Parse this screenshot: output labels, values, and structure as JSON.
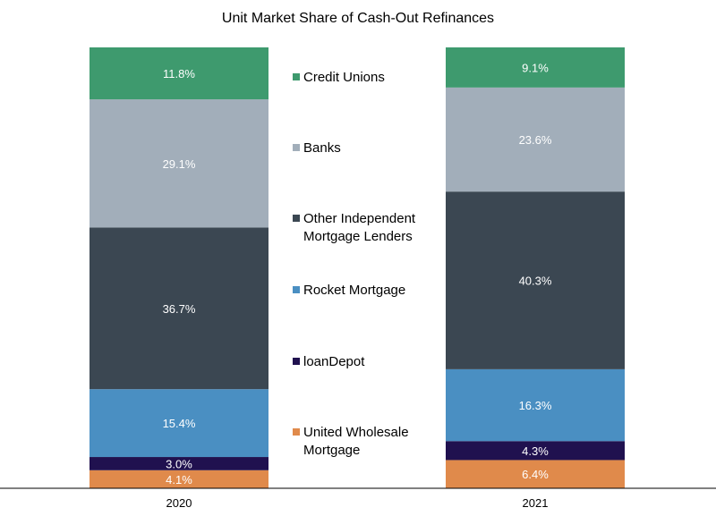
{
  "chart_data": {
    "type": "bar",
    "stacked": true,
    "title": "Unit Market Share of Cash-Out Refinances",
    "xlabel": "",
    "ylabel": "",
    "ylim": [
      0,
      100
    ],
    "grid": false,
    "legend_position": "center",
    "categories": [
      "2020",
      "2021"
    ],
    "series": [
      {
        "name": "United Wholesale Mortgage",
        "legend_lines": [
          "United Wholesale",
          "Mortgage"
        ],
        "color": "#E08A4B",
        "values": [
          4.1,
          6.4
        ],
        "labels": [
          "4.1%",
          "6.4%"
        ]
      },
      {
        "name": "loanDepot",
        "legend_lines": [
          "loanDepot"
        ],
        "color": "#20114F",
        "values": [
          3.0,
          4.3
        ],
        "labels": [
          "3.0%",
          "4.3%"
        ]
      },
      {
        "name": "Rocket Mortgage",
        "legend_lines": [
          "Rocket Mortgage"
        ],
        "color": "#4A8FC2",
        "values": [
          15.4,
          16.3
        ],
        "labels": [
          "15.4%",
          "16.3%"
        ]
      },
      {
        "name": "Other Independent Mortgage Lenders",
        "legend_lines": [
          "Other Independent",
          "Mortgage Lenders"
        ],
        "color": "#3B4752",
        "values": [
          36.7,
          40.3
        ],
        "labels": [
          "36.7%",
          "40.3%"
        ]
      },
      {
        "name": "Banks",
        "legend_lines": [
          "Banks"
        ],
        "color": "#A2AEBA",
        "values": [
          29.1,
          23.6
        ],
        "labels": [
          "29.1%",
          "23.6%"
        ]
      },
      {
        "name": "Credit Unions",
        "legend_lines": [
          "Credit Unions"
        ],
        "color": "#3E9A6E",
        "values": [
          11.8,
          9.1
        ],
        "labels": [
          "11.8%",
          "9.1%"
        ]
      }
    ],
    "label_color": "#FFFFFF",
    "axis_color": "#000000"
  }
}
